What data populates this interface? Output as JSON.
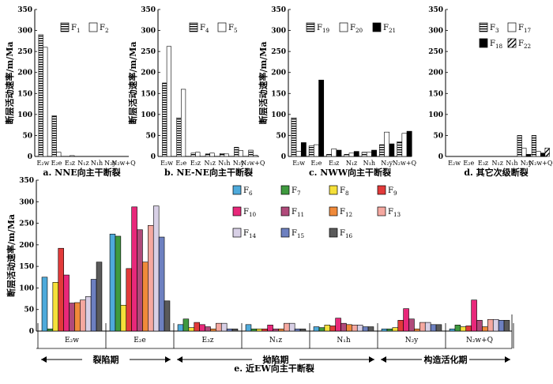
{
  "figure_caption": "",
  "chart_data": [
    {
      "id": "a",
      "type": "bar",
      "caption": "a. NNE向主干断裂",
      "ylabel": "断层活动速率/m/Ma",
      "ylim": [
        0,
        350
      ],
      "yticks": [
        0,
        50,
        100,
        150,
        200,
        250,
        300,
        350
      ],
      "categories": [
        "E₂w",
        "E₂e",
        "E₃z",
        "N₁z",
        "N₁h",
        "N₂y",
        "N₂w+Q"
      ],
      "series": [
        {
          "name": "F1",
          "sub": "1",
          "pattern": "hstripe",
          "values": [
            290,
            97,
            0,
            0,
            0,
            0,
            0
          ]
        },
        {
          "name": "F2",
          "sub": "2",
          "pattern": "white",
          "values": [
            260,
            10,
            2,
            0,
            0,
            0,
            0
          ]
        }
      ]
    },
    {
      "id": "b",
      "type": "bar",
      "caption": "b. NE-NE向主干断裂",
      "ylabel": "断层活动速率/m/Ma",
      "ylim": [
        0,
        350
      ],
      "yticks": [
        0,
        50,
        100,
        150,
        200,
        250,
        300,
        350
      ],
      "categories": [
        "E₂w",
        "E₂e",
        "E₃z",
        "N₁z",
        "N₁h",
        "N₂y",
        "N₂w+Q"
      ],
      "series": [
        {
          "name": "F4",
          "sub": "4",
          "pattern": "hstripe",
          "values": [
            175,
            92,
            8,
            6,
            7,
            22,
            15
          ]
        },
        {
          "name": "F5",
          "sub": "5",
          "pattern": "white",
          "values": [
            262,
            160,
            10,
            8,
            6,
            14,
            3
          ]
        }
      ]
    },
    {
      "id": "c",
      "type": "bar",
      "caption": "c. NWW向主干断裂",
      "ylabel": "断层活动速率/m/Ma",
      "ylim": [
        0,
        350
      ],
      "yticks": [
        0,
        50,
        100,
        150,
        200,
        250,
        300,
        350
      ],
      "categories": [
        "E₂w",
        "E₂e",
        "E₃z",
        "N₁z",
        "N₁h",
        "N₂y",
        "N₂w+Q"
      ],
      "series": [
        {
          "name": "F19",
          "sub": "19",
          "pattern": "hstripe",
          "values": [
            92,
            25,
            5,
            5,
            10,
            28,
            35
          ]
        },
        {
          "name": "F20",
          "sub": "20",
          "pattern": "white",
          "values": [
            12,
            28,
            18,
            8,
            10,
            58,
            55
          ]
        },
        {
          "name": "F21",
          "sub": "21",
          "pattern": "black",
          "values": [
            33,
            182,
            15,
            12,
            15,
            30,
            60
          ]
        }
      ]
    },
    {
      "id": "d",
      "type": "bar",
      "caption": "d. 其它次级断裂",
      "ylabel": "",
      "ylim": [
        0,
        350
      ],
      "yticks": [
        0,
        50,
        100,
        150,
        200,
        250,
        300,
        350
      ],
      "categories": [
        "E₂w",
        "E₂e",
        "E₃z",
        "N₁z",
        "N₁h",
        "N₂y",
        "N₂w+Q"
      ],
      "series": [
        {
          "name": "F3",
          "sub": "3",
          "pattern": "hstripe",
          "values": [
            0,
            0,
            0,
            0,
            0,
            50,
            50
          ]
        },
        {
          "name": "F17",
          "sub": "17",
          "pattern": "white",
          "values": [
            0,
            0,
            0,
            0,
            0,
            20,
            12
          ]
        },
        {
          "name": "F18",
          "sub": "18",
          "pattern": "black",
          "values": [
            0,
            0,
            0,
            0,
            0,
            5,
            8
          ]
        },
        {
          "name": "F22",
          "sub": "22",
          "pattern": "diag",
          "values": [
            0,
            0,
            0,
            0,
            0,
            5,
            20
          ]
        }
      ]
    },
    {
      "id": "e",
      "type": "bar",
      "caption": "e. 近EW向主干断裂",
      "ylabel": "断层活动速率/m/Ma",
      "ylim": [
        0,
        350
      ],
      "yticks": [
        0,
        50,
        100,
        150,
        200,
        250,
        300,
        350
      ],
      "categories": [
        "E₂w",
        "E₂e",
        "E₃z",
        "N₁z",
        "N₁h",
        "N₂y",
        "N₂w+Q"
      ],
      "periods": [
        {
          "label": "裂陷期",
          "from": 0,
          "to": 1
        },
        {
          "label": "拗陷期",
          "from": 2,
          "to": 4
        },
        {
          "label": "构造活化期",
          "from": 5,
          "to": 6
        }
      ],
      "series": [
        {
          "name": "F6",
          "sub": "6",
          "color": "#4eaadb",
          "values": [
            125,
            225,
            15,
            15,
            10,
            5,
            5
          ]
        },
        {
          "name": "F7",
          "sub": "7",
          "color": "#3f9a3f",
          "values": [
            5,
            220,
            28,
            5,
            8,
            5,
            14
          ]
        },
        {
          "name": "F8",
          "sub": "8",
          "color": "#f5e03a",
          "values": [
            113,
            60,
            8,
            5,
            14,
            8,
            10
          ]
        },
        {
          "name": "F9",
          "sub": "9",
          "color": "#e23a3a",
          "values": [
            192,
            145,
            20,
            5,
            12,
            25,
            12
          ]
        },
        {
          "name": "F10",
          "sub": "10",
          "color": "#e8287a",
          "values": [
            130,
            288,
            15,
            14,
            30,
            52,
            72
          ]
        },
        {
          "name": "F11",
          "sub": "11",
          "color": "#b04a7a",
          "values": [
            65,
            235,
            10,
            5,
            18,
            28,
            25
          ]
        },
        {
          "name": "F12",
          "sub": "12",
          "color": "#f08a3a",
          "values": [
            66,
            160,
            5,
            5,
            15,
            5,
            10
          ]
        },
        {
          "name": "F13",
          "sub": "13",
          "color": "#f5a8a0",
          "values": [
            72,
            245,
            18,
            18,
            14,
            20,
            27
          ]
        },
        {
          "name": "F14",
          "sub": "14",
          "color": "#d8d0e6",
          "values": [
            80,
            290,
            18,
            18,
            14,
            20,
            27
          ]
        },
        {
          "name": "F15",
          "sub": "15",
          "color": "#6d80c0",
          "values": [
            120,
            218,
            5,
            5,
            10,
            15,
            25
          ]
        },
        {
          "name": "F16",
          "sub": "16",
          "color": "#5a5a5a",
          "values": [
            160,
            70,
            5,
            5,
            10,
            15,
            25
          ]
        }
      ]
    }
  ]
}
